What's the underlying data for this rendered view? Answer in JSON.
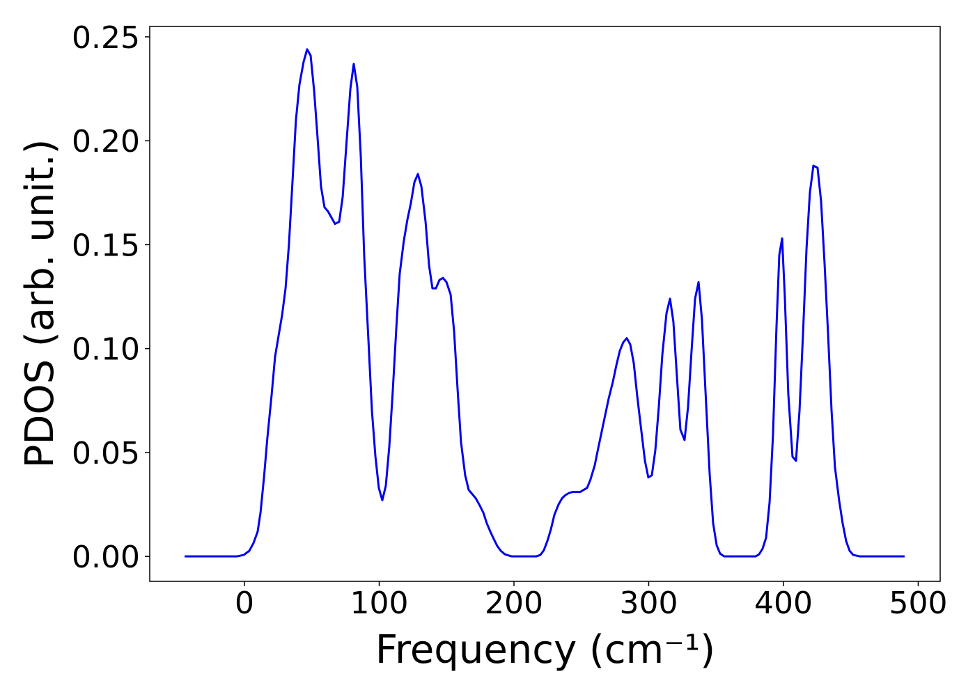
{
  "chart_data": {
    "type": "line",
    "xlabel": "Frequency (cm⁻¹)",
    "ylabel": "PDOS (arb. unit.)",
    "xlim": [
      -70.3,
      516.3
    ],
    "ylim": [
      -0.012,
      0.255
    ],
    "xticks": [
      0,
      100,
      200,
      300,
      400,
      500
    ],
    "yticks": [
      {
        "value": 0,
        "label": "0.00"
      },
      {
        "value": 0.05,
        "label": "0.05"
      },
      {
        "value": 0.1,
        "label": "0.10"
      },
      {
        "value": 0.15,
        "label": "0.15"
      },
      {
        "value": 0.2,
        "label": "0.20"
      },
      {
        "value": 0.25,
        "label": "0.25"
      }
    ],
    "grid": false,
    "x": [
      -44.4,
      -5.7,
      -0.5,
      3.6,
      6.7,
      9.8,
      11.9,
      14.5,
      17,
      20.2,
      22.7,
      25.8,
      27.9,
      30.5,
      33,
      35.7,
      38.2,
      40.8,
      43.9,
      46.5,
      49.1,
      51.7,
      54.3,
      56.8,
      59.4,
      62,
      64.6,
      67.2,
      70.3,
      72.9,
      75.5,
      78.6,
      81.1,
      83.7,
      86.3,
      88.9,
      92,
      94.6,
      97.2,
      99.7,
      102.3,
      104.9,
      107.5,
      110.1,
      112.7,
      115.2,
      118.3,
      120.9,
      123.5,
      126.1,
      128.7,
      131.3,
      134.4,
      137,
      139.5,
      142.1,
      144.7,
      147.3,
      149.9,
      153,
      155.6,
      158.1,
      160.7,
      163.8,
      166.4,
      169,
      171.6,
      174.2,
      177.3,
      179.8,
      182.4,
      185,
      187.6,
      190.2,
      193.3,
      198.4,
      216.5,
      219.6,
      222.2,
      224.8,
      227.4,
      230,
      233.1,
      235.7,
      238.2,
      240.8,
      243.4,
      246.5,
      249.1,
      251.7,
      254.3,
      256.8,
      260,
      262.5,
      265.1,
      267.7,
      270.3,
      273.4,
      276,
      278.6,
      281.1,
      283.7,
      286.3,
      288.9,
      291.5,
      294.6,
      297.2,
      299.7,
      302.3,
      304.9,
      307.5,
      310.1,
      313.2,
      315.8,
      318.3,
      320.9,
      323.5,
      326.6,
      329.2,
      331.8,
      334.4,
      337,
      339.5,
      342.1,
      345.2,
      347.8,
      350.4,
      353,
      356,
      379.3,
      381.9,
      384.5,
      387.1,
      389.7,
      392.2,
      394.8,
      396.9,
      399,
      401,
      403.6,
      406.7,
      409.3,
      411.9,
      414.5,
      417.1,
      419.6,
      422.2,
      425.3,
      427.9,
      430.5,
      433.1,
      435.7,
      438.2,
      441.3,
      443.9,
      446.5,
      449.1,
      451.7,
      456.8,
      489.9
    ],
    "series": [
      {
        "color": "#0000ee",
        "values": [
          0,
          0,
          0.0007,
          0.0027,
          0.0064,
          0.012,
          0.021,
          0.038,
          0.057,
          0.078,
          0.096,
          0.108,
          0.116,
          0.129,
          0.15,
          0.181,
          0.21,
          0.227,
          0.238,
          0.244,
          0.241,
          0.224,
          0.201,
          0.178,
          0.168,
          0.166,
          0.163,
          0.16,
          0.161,
          0.173,
          0.197,
          0.225,
          0.237,
          0.226,
          0.193,
          0.144,
          0.104,
          0.07,
          0.048,
          0.033,
          0.027,
          0.034,
          0.053,
          0.08,
          0.11,
          0.136,
          0.152,
          0.162,
          0.17,
          0.18,
          0.184,
          0.178,
          0.161,
          0.14,
          0.129,
          0.129,
          0.133,
          0.134,
          0.132,
          0.126,
          0.108,
          0.081,
          0.055,
          0.039,
          0.032,
          0.03,
          0.028,
          0.025,
          0.021,
          0.016,
          0.012,
          0.0084,
          0.005,
          0.0027,
          0.001,
          0,
          0,
          0.0007,
          0.003,
          0.0074,
          0.013,
          0.02,
          0.025,
          0.028,
          0.0295,
          0.0305,
          0.031,
          0.031,
          0.031,
          0.032,
          0.033,
          0.037,
          0.044,
          0.052,
          0.06,
          0.068,
          0.076,
          0.084,
          0.092,
          0.099,
          0.103,
          0.105,
          0.102,
          0.093,
          0.077,
          0.06,
          0.046,
          0.038,
          0.039,
          0.051,
          0.072,
          0.097,
          0.117,
          0.124,
          0.113,
          0.087,
          0.061,
          0.056,
          0.072,
          0.099,
          0.124,
          0.132,
          0.114,
          0.08,
          0.04,
          0.016,
          0.0054,
          0.0013,
          0,
          0,
          0.001,
          0.0037,
          0.009,
          0.026,
          0.058,
          0.11,
          0.145,
          0.153,
          0.125,
          0.078,
          0.048,
          0.046,
          0.07,
          0.107,
          0.148,
          0.175,
          0.188,
          0.187,
          0.171,
          0.141,
          0.107,
          0.07,
          0.043,
          0.027,
          0.016,
          0.0074,
          0.0027,
          0.0007,
          0,
          0
        ]
      }
    ]
  }
}
